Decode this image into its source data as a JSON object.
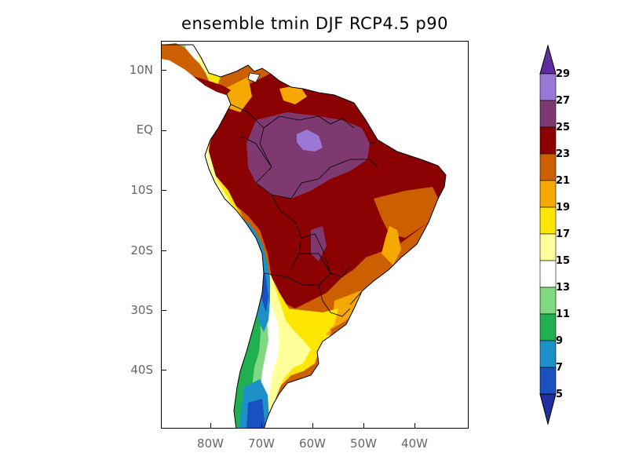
{
  "title": "ensemble tmin DJF RCP4.5 p90",
  "axes": {
    "lat_labels": [
      "10N",
      "EQ",
      "10S",
      "20S",
      "30S",
      "40S"
    ],
    "lon_labels": [
      "80W",
      "70W",
      "60W",
      "50W",
      "40W"
    ]
  },
  "colorbar": {
    "levels": [
      "29",
      "27",
      "25",
      "23",
      "21",
      "19",
      "17",
      "15",
      "13",
      "11",
      "9",
      "7",
      "5"
    ],
    "colors": [
      "#5e2ea0",
      "#9a78d8",
      "#7e3a70",
      "#8b0000",
      "#cc6000",
      "#f5a800",
      "#ffe600",
      "#ffff99",
      "#ffffff",
      "#80d880",
      "#20b050",
      "#1e90c8",
      "#1a50c0",
      "#2030a0"
    ]
  }
}
